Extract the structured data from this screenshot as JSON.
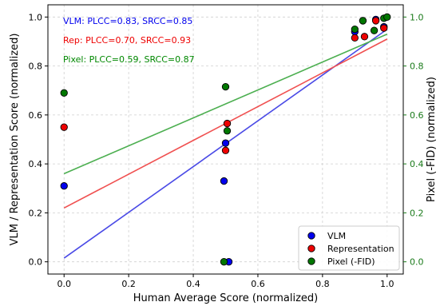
{
  "chart_data": {
    "type": "scatter",
    "title": "",
    "xlabel": "Human Average Score (normalized)",
    "ylabel_left": "VLM / Representation Score (normalized)",
    "ylabel_right": "Pixel (-FID) (normalized)",
    "xlim": [
      -0.05,
      1.05
    ],
    "ylim_left": [
      -0.05,
      1.05
    ],
    "ylim_right": [
      -0.05,
      1.05
    ],
    "x_ticks": [
      "0.0",
      "0.2",
      "0.4",
      "0.6",
      "0.8",
      "1.0"
    ],
    "y_ticks_left": [
      "0.0",
      "0.2",
      "0.4",
      "0.6",
      "0.8",
      "1.0"
    ],
    "y_ticks_right": [
      "0.0",
      "0.2",
      "0.4",
      "0.6",
      "0.8",
      "1.0"
    ],
    "grid": true,
    "legend_position": "bottom-right",
    "annotations": [
      {
        "text": "VLM: PLCC=0.83, SRCC=0.85",
        "color": "#0000ee"
      },
      {
        "text": "Rep: PLCC=0.70, SRCC=0.93",
        "color": "#ee0000"
      },
      {
        "text": "Pixel: PLCC=0.59, SRCC=0.87",
        "color": "#008800"
      }
    ],
    "series": [
      {
        "name": "VLM",
        "axis": "left",
        "color": "#0000ee",
        "line_color": "#4a4ae6",
        "x": [
          0.0,
          0.495,
          0.5,
          0.51,
          0.9,
          0.925,
          0.965,
          0.99
        ],
        "y": [
          0.31,
          0.33,
          0.485,
          0.0,
          0.94,
          0.985,
          0.99,
          0.96
        ],
        "fit": [
          0.0,
          0.015,
          1.0,
          0.95
        ]
      },
      {
        "name": "Representation",
        "axis": "left",
        "color": "#ee0000",
        "line_color": "#f05050",
        "x": [
          0.0,
          0.5,
          0.505,
          0.9,
          0.93,
          0.965,
          0.99
        ],
        "y": [
          0.55,
          0.455,
          0.565,
          0.915,
          0.92,
          0.985,
          0.955
        ],
        "fit": [
          0.0,
          0.22,
          1.0,
          0.91
        ]
      },
      {
        "name": "Pixel (-FID)",
        "axis": "right",
        "color": "#007700",
        "line_color": "#4caf50",
        "x": [
          0.0,
          0.495,
          0.5,
          0.505,
          0.9,
          0.925,
          0.96,
          0.99,
          1.0
        ],
        "y": [
          0.69,
          0.0,
          0.715,
          0.535,
          0.95,
          0.985,
          0.945,
          0.995,
          1.0
        ],
        "fit": [
          0.0,
          0.36,
          1.0,
          0.93
        ]
      }
    ]
  }
}
